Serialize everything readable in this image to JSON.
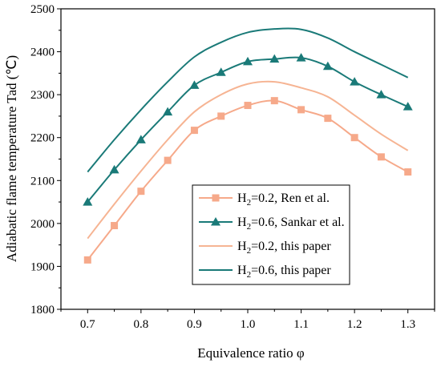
{
  "chart_data": {
    "type": "line",
    "xlabel": "Equivalence ratio φ",
    "ylabel": "Adiabatic flame temperature Tad (℃)",
    "xlim": [
      0.65,
      1.35
    ],
    "ylim": [
      1800,
      2500
    ],
    "xticks": [
      "0.7",
      "0.8",
      "0.9",
      "1.0",
      "1.1",
      "1.2",
      "1.3"
    ],
    "yticks": [
      "1800",
      "1900",
      "2000",
      "2100",
      "2200",
      "2300",
      "2400",
      "2500"
    ],
    "grid": false,
    "legend_position": "lower-right",
    "series": [
      {
        "name": "H2=0.2, Ren et al.",
        "legend_label": {
          "main": "H",
          "sub": "2",
          "rest": "=0.2, Ren et al."
        },
        "color": "#f6a98a",
        "marker": "square",
        "style": "line+marker",
        "x": [
          0.7,
          0.75,
          0.8,
          0.85,
          0.9,
          0.95,
          1.0,
          1.05,
          1.1,
          1.15,
          1.2,
          1.25,
          1.3
        ],
        "y": [
          1915,
          1995,
          2075,
          2147,
          2217,
          2250,
          2275,
          2286,
          2265,
          2245,
          2200,
          2155,
          2120
        ]
      },
      {
        "name": "H2=0.6, Sankar et al.",
        "legend_label": {
          "main": "H",
          "sub": "2",
          "rest": "=0.6, Sankar et al."
        },
        "color": "#1a7a78",
        "marker": "triangle",
        "style": "line+marker",
        "x": [
          0.7,
          0.75,
          0.8,
          0.85,
          0.9,
          0.95,
          1.0,
          1.05,
          1.1,
          1.15,
          1.2,
          1.25,
          1.3
        ],
        "y": [
          2050,
          2125,
          2195,
          2260,
          2322,
          2352,
          2377,
          2383,
          2386,
          2366,
          2330,
          2300,
          2272
        ]
      },
      {
        "name": "H2=0.2, this paper",
        "legend_label": {
          "main": "H",
          "sub": "2",
          "rest": "=0.2, this paper"
        },
        "color": "#f6b493",
        "marker": "none",
        "style": "line",
        "x": [
          0.7,
          0.75,
          0.8,
          0.85,
          0.9,
          0.95,
          1.0,
          1.05,
          1.1,
          1.15,
          1.2,
          1.25,
          1.3
        ],
        "y": [
          1965,
          2045,
          2122,
          2195,
          2260,
          2300,
          2325,
          2330,
          2316,
          2295,
          2252,
          2208,
          2170
        ]
      },
      {
        "name": "H2=0.6, this paper",
        "legend_label": {
          "main": "H",
          "sub": "2",
          "rest": "=0.6, this paper"
        },
        "color": "#1a7a78",
        "marker": "none",
        "style": "line",
        "x": [
          0.7,
          0.75,
          0.8,
          0.85,
          0.9,
          0.95,
          1.0,
          1.05,
          1.1,
          1.15,
          1.2,
          1.25,
          1.3
        ],
        "y": [
          2120,
          2195,
          2265,
          2330,
          2388,
          2422,
          2445,
          2453,
          2452,
          2432,
          2400,
          2370,
          2340
        ]
      }
    ]
  }
}
